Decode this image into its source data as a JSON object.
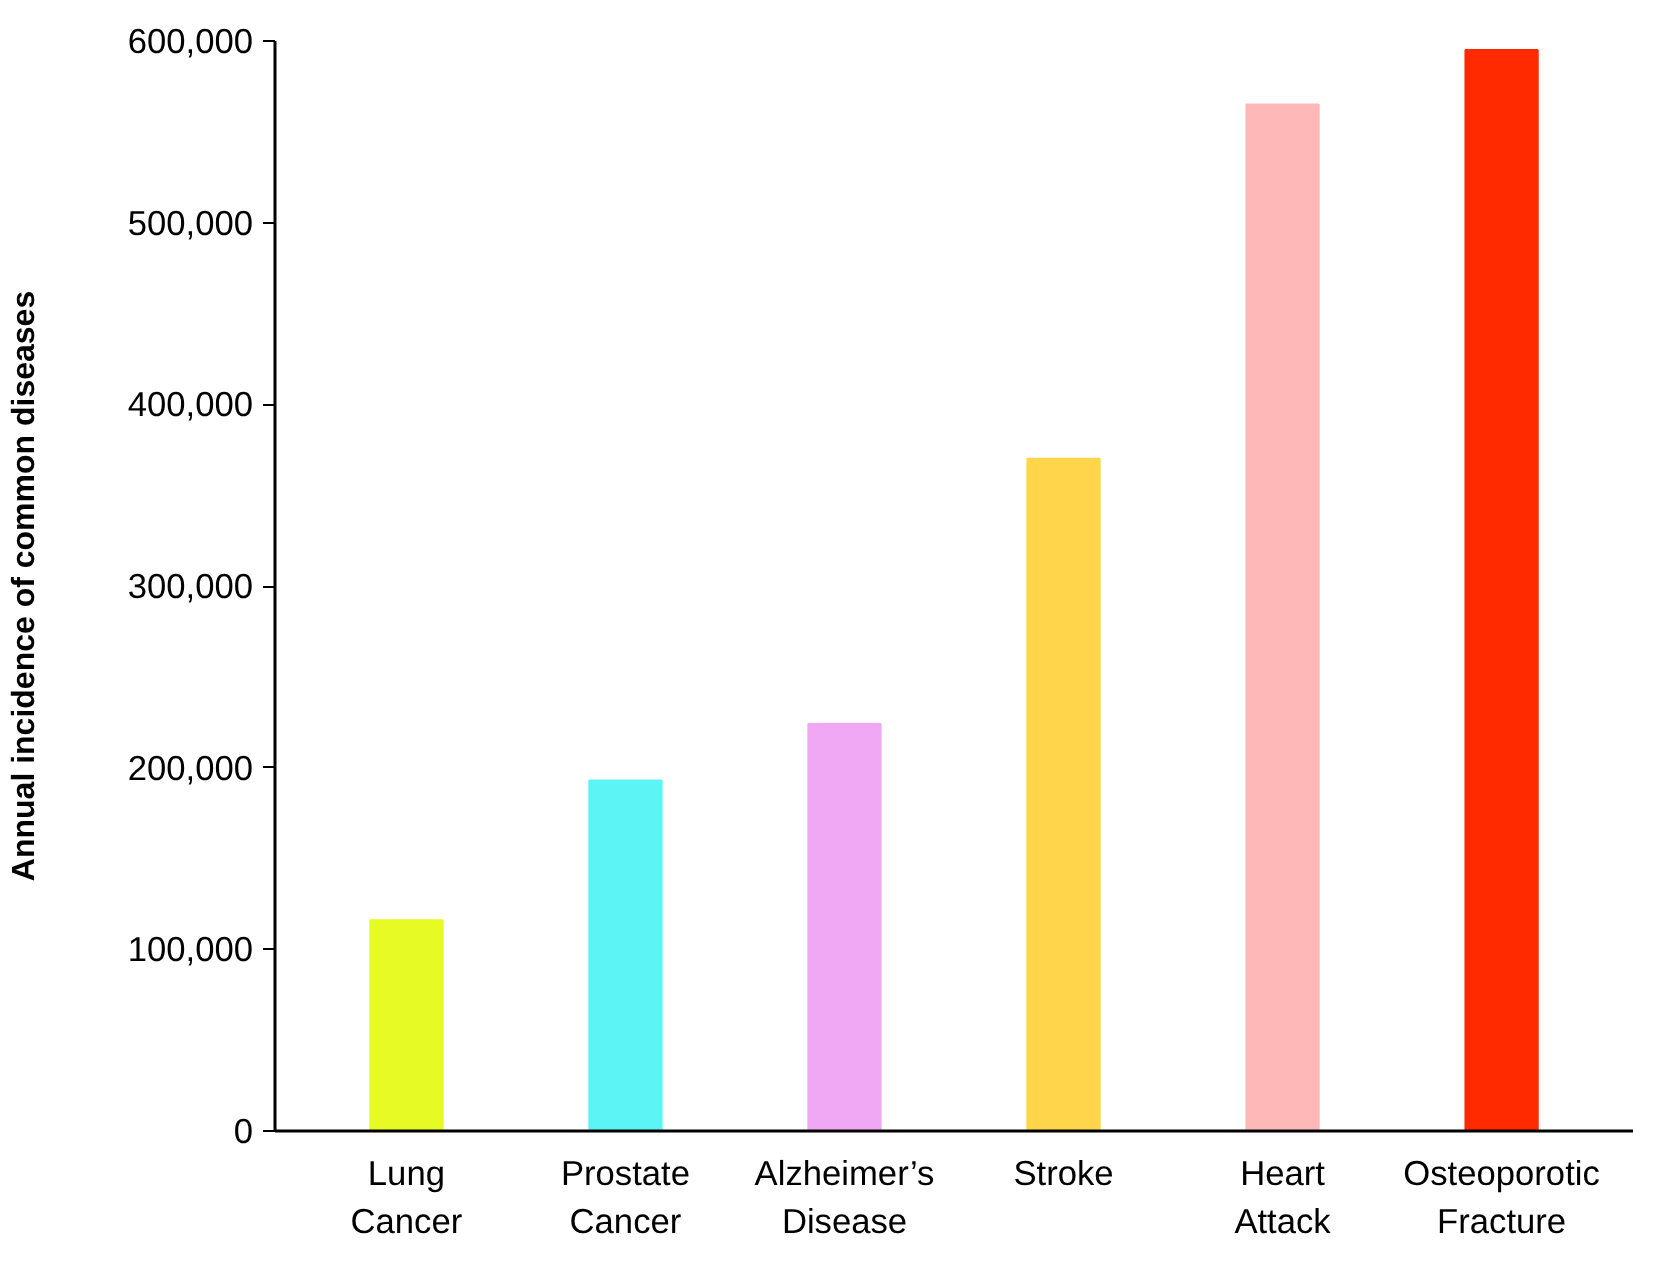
{
  "chart_data": {
    "type": "bar",
    "ylabel": "Annual incidence of common diseases",
    "categories": [
      "Lung Cancer",
      "Prostate Cancer",
      "Alzheimer’s Disease",
      "Stroke",
      "Heart Attack",
      "Osteoporotic Fracture"
    ],
    "values": [
      116000,
      193000,
      224000,
      370000,
      565000,
      595000
    ],
    "colors": [
      "#e6fa23",
      "#5cf5f5",
      "#f0a8f5",
      "#ffd54a",
      "#ffb8b8",
      "#ff2a00"
    ],
    "ylim": [
      0,
      600000
    ],
    "yticks": [
      {
        "value": 0,
        "label": "0"
      },
      {
        "value": 100000,
        "label": "100,000"
      },
      {
        "value": 200000,
        "label": "200,000"
      },
      {
        "value": 300000,
        "label": "300,000"
      },
      {
        "value": 400000,
        "label": "400,000"
      },
      {
        "value": 500000,
        "label": "500,000"
      },
      {
        "value": 600000,
        "label": "600,000"
      }
    ],
    "grid": false
  }
}
